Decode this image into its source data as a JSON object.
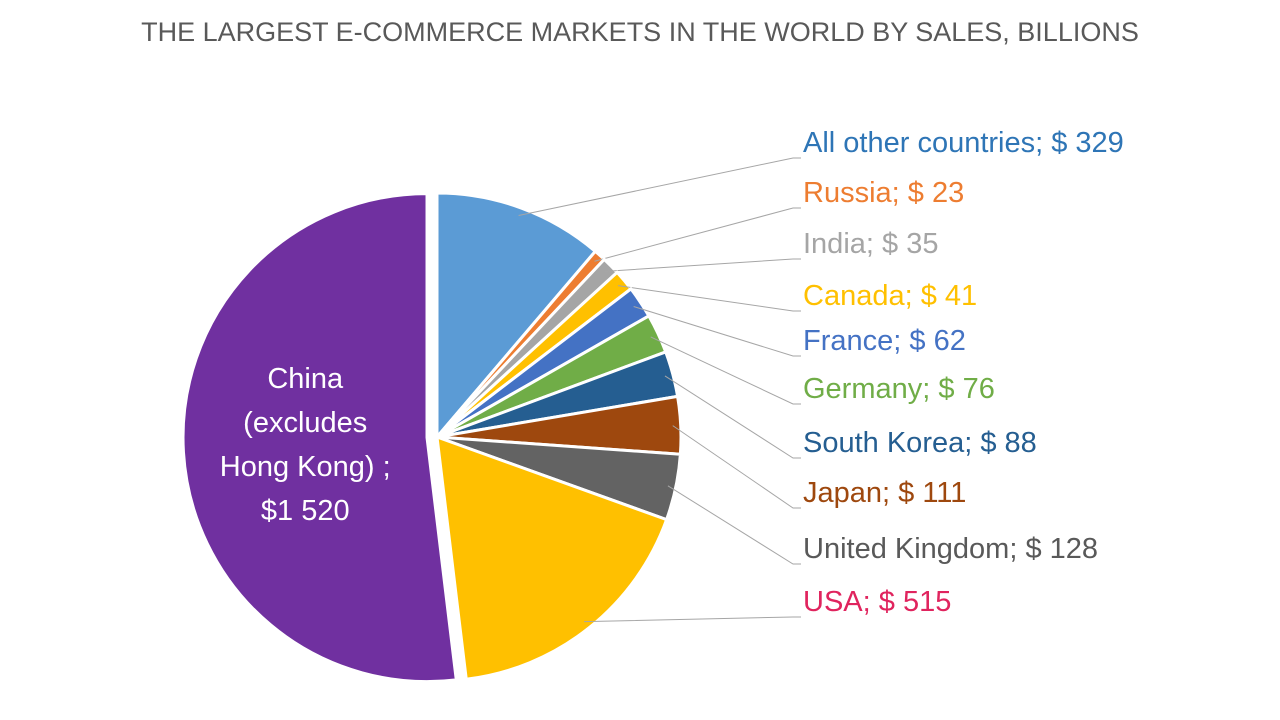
{
  "chart_data": {
    "type": "pie",
    "title": "THE LARGEST E-COMMERCE MARKETS IN THE WORLD BY SALES, BILLIONS",
    "categories": [
      "All other countries",
      "Russia",
      "India",
      "Canada",
      "France",
      "Germany",
      "South Korea",
      "Japan",
      "United Kingdom",
      "USA",
      "China (excludes Hong Kong)"
    ],
    "values": [
      329,
      23,
      35,
      41,
      62,
      76,
      88,
      111,
      128,
      515,
      1520
    ],
    "value_labels": [
      "; $ 329",
      "; $ 23",
      "; $ 35",
      "; $ 41",
      "; $ 62",
      "; $ 76",
      "; $ 88",
      "; $ 111",
      "; $ 128",
      "; $ 515",
      " ; $1 520"
    ],
    "colors": [
      "#5b9bd5",
      "#ed7d31",
      "#a5a5a5",
      "#ffc000",
      "#4472c4",
      "#70ad47",
      "#255e91",
      "#9e480e",
      "#636363",
      "#ffc000",
      "#7030a0"
    ],
    "label_colors": [
      "#2e75b6",
      "#ed7d31",
      "#a5a5a5",
      "#ffc000",
      "#4472c4",
      "#70ad47",
      "#255e91",
      "#9e480e",
      "#595959",
      "#e0245e",
      "#ffffff"
    ]
  }
}
